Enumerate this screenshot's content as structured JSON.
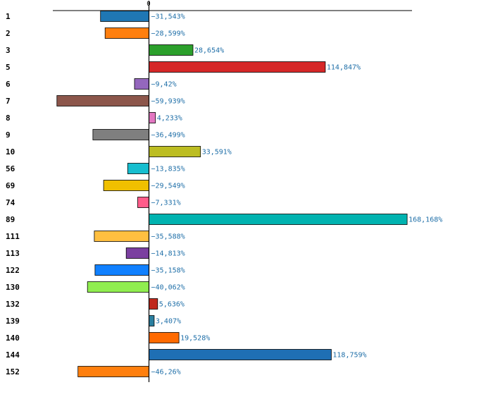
{
  "chart_data": {
    "type": "bar",
    "orientation": "horizontal",
    "title": "",
    "xlabel": "",
    "ylabel": "",
    "xlim": [
      -75,
      175
    ],
    "zero_tick_label": "0",
    "categories": [
      "1",
      "2",
      "3",
      "5",
      "6",
      "7",
      "8",
      "9",
      "10",
      "56",
      "69",
      "74",
      "89",
      "111",
      "113",
      "122",
      "130",
      "132",
      "139",
      "140",
      "144",
      "152"
    ],
    "values": [
      -31.543,
      -28.599,
      28.654,
      114.847,
      -9.42,
      -59.939,
      4.233,
      -36.499,
      33.591,
      -13.835,
      -29.549,
      -7.331,
      168.168,
      -35.588,
      -14.813,
      -35.158,
      -40.062,
      5.636,
      3.407,
      19.528,
      118.759,
      -46.26
    ],
    "value_labels": [
      "−31,543%",
      "−28,599%",
      "28,654%",
      "114,847%",
      "−9,42%",
      "−59,939%",
      "4,233%",
      "−36,499%",
      "33,591%",
      "−13,835%",
      "−29,549%",
      "−7,331%",
      "168,168%",
      "−35,588%",
      "−14,813%",
      "−35,158%",
      "−40,062%",
      "5,636%",
      "3,407%",
      "19,528%",
      "118,759%",
      "−46,26%"
    ],
    "colors": [
      "#1f77b4",
      "#ff7f0e",
      "#2ca02c",
      "#d62728",
      "#9467bd",
      "#8c564b",
      "#e377c2",
      "#7f7f7f",
      "#bcbd22",
      "#17becf",
      "#f0c000",
      "#ff5c8a",
      "#00b3b0",
      "#ffbf40",
      "#7b3fa0",
      "#1080ff",
      "#90ee50",
      "#c0281c",
      "#2a7fa0",
      "#ff6a00",
      "#1f6fb4",
      "#ff7f0e"
    ]
  }
}
